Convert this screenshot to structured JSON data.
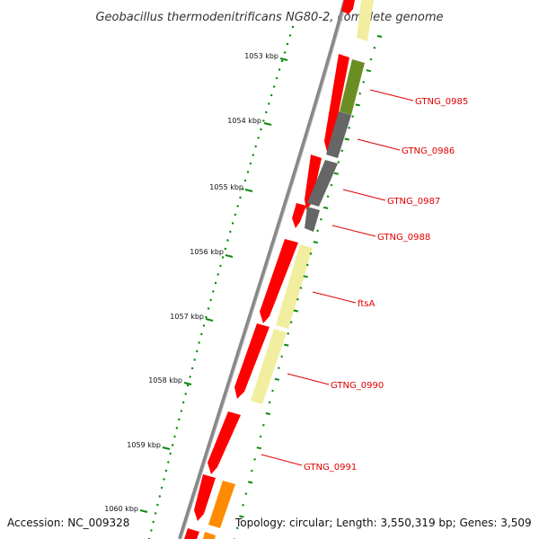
{
  "title": "Geobacillus thermodenitrificans NG80-2, complete genome",
  "accession": "Accession: NC_009328",
  "topology": "Topology: circular; Length: 3,550,319 bp; Genes: 3,509",
  "ticks": [
    "1053 kbp",
    "1054 kbp",
    "1055 kbp",
    "1056 kbp",
    "1057 kbp",
    "1058 kbp",
    "1059 kbp",
    "1060 kbp"
  ],
  "genes": [
    "GTNG_0985",
    "GTNG_0986",
    "GTNG_0987",
    "GTNG_0988",
    "ftsA",
    "GTNG_0990",
    "GTNG_0991"
  ],
  "colors": {
    "cds": "#ff0000",
    "olive": "#6b8e23",
    "gray": "#666666",
    "pale": "#f2eea0",
    "orange": "#ff8c00",
    "backbone": "#777777",
    "tick": "#008000",
    "label": "#e00000"
  }
}
